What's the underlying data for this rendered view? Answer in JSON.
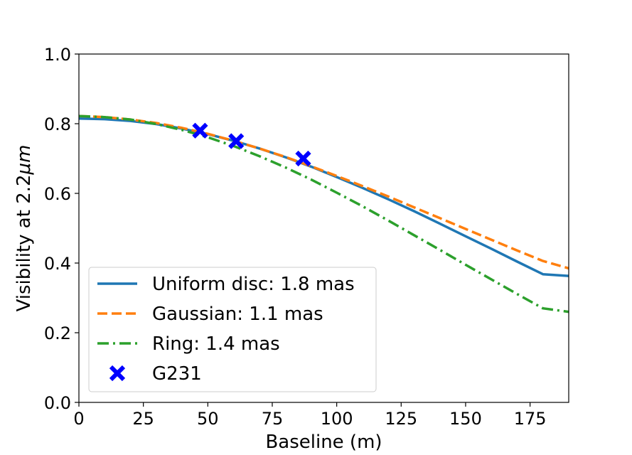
{
  "chart_data": {
    "type": "line",
    "xlabel": "Baseline (m)",
    "ylabel_prefix": "Visibility at 2.2",
    "ylabel_mu": "μ",
    "ylabel_suffix": "m",
    "xlim": [
      0,
      190
    ],
    "ylim": [
      0.0,
      1.0
    ],
    "xticks": [
      0,
      25,
      50,
      75,
      100,
      125,
      150,
      175
    ],
    "xtick_labels": [
      "0",
      "25",
      "50",
      "75",
      "100",
      "125",
      "150",
      "175"
    ],
    "yticks": [
      0.0,
      0.2,
      0.4,
      0.6,
      0.8,
      1.0
    ],
    "ytick_labels": [
      "0.0",
      "0.2",
      "0.4",
      "0.6",
      "0.8",
      "1.0"
    ],
    "grid": false,
    "legend_position": "lower-left",
    "series": [
      {
        "name": "Uniform disc: 1.8 mas",
        "color": "#1f77b4",
        "style": "solid",
        "x": [
          0,
          10,
          20,
          30,
          40,
          50,
          60,
          70,
          80,
          90,
          100,
          110,
          120,
          130,
          140,
          150,
          160,
          170,
          180,
          190
        ],
        "y": [
          0.815,
          0.813,
          0.808,
          0.799,
          0.786,
          0.77,
          0.751,
          0.729,
          0.704,
          0.677,
          0.647,
          0.616,
          0.583,
          0.549,
          0.513,
          0.477,
          0.441,
          0.404,
          0.368,
          0.363
        ]
      },
      {
        "name": "Gaussian: 1.1 mas",
        "color": "#ff7f0e",
        "style": "dashed",
        "x": [
          0,
          10,
          20,
          30,
          40,
          50,
          60,
          70,
          80,
          90,
          100,
          110,
          120,
          130,
          140,
          150,
          160,
          170,
          180,
          190
        ],
        "y": [
          0.822,
          0.819,
          0.812,
          0.802,
          0.788,
          0.771,
          0.751,
          0.729,
          0.705,
          0.678,
          0.65,
          0.621,
          0.591,
          0.56,
          0.529,
          0.498,
          0.467,
          0.436,
          0.406,
          0.385
        ]
      },
      {
        "name": "Ring: 1.4 mas",
        "color": "#2ca02c",
        "style": "dashdot",
        "x": [
          0,
          10,
          20,
          30,
          40,
          50,
          60,
          70,
          80,
          90,
          100,
          110,
          120,
          130,
          140,
          150,
          160,
          170,
          180,
          190
        ],
        "y": [
          0.822,
          0.819,
          0.812,
          0.799,
          0.782,
          0.761,
          0.736,
          0.707,
          0.675,
          0.64,
          0.602,
          0.563,
          0.522,
          0.48,
          0.438,
          0.395,
          0.353,
          0.311,
          0.27,
          0.26
        ]
      },
      {
        "name": "G231",
        "color": "#0000ff",
        "style": "marker-x",
        "x": [
          47,
          61,
          87
        ],
        "y": [
          0.78,
          0.75,
          0.7
        ]
      }
    ]
  }
}
